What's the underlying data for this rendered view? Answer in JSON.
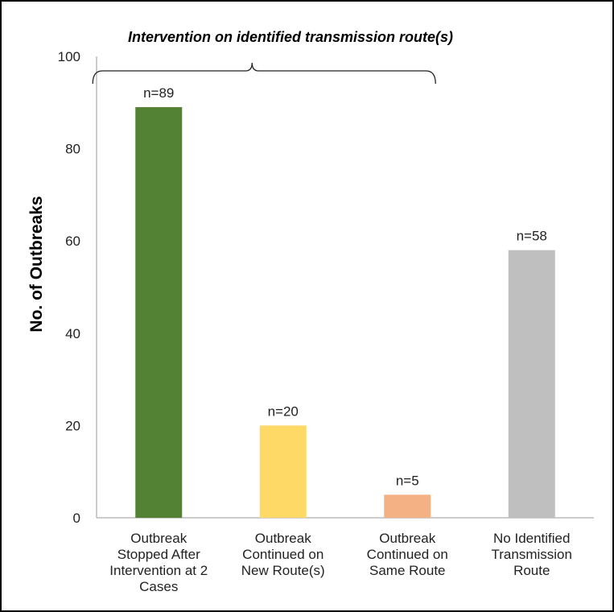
{
  "chart_data": {
    "type": "bar",
    "title": "",
    "xlabel": "",
    "ylabel": "No. of Outbreaks",
    "ylim": [
      0,
      100
    ],
    "yticks": [
      0,
      20,
      40,
      60,
      80,
      100
    ],
    "categories": [
      [
        "Outbreak",
        "Stopped After",
        "Intervention at 2",
        "Cases"
      ],
      [
        "Outbreak",
        "Continued on",
        "New Route(s)"
      ],
      [
        "Outbreak",
        "Continued on",
        "Same Route"
      ],
      [
        "No Identified",
        "Transmission",
        "Route"
      ]
    ],
    "values": [
      89,
      20,
      5,
      58
    ],
    "data_labels": [
      "n=89",
      "n=20",
      "n=5",
      "n=58"
    ],
    "colors": [
      "#548235",
      "#ffd966",
      "#f4b183",
      "#bfbfbf"
    ],
    "grid": false,
    "legend": "none",
    "annotation": {
      "text": "Intervention on identified transmission route(s)",
      "spans_categories": [
        0,
        2
      ]
    }
  }
}
